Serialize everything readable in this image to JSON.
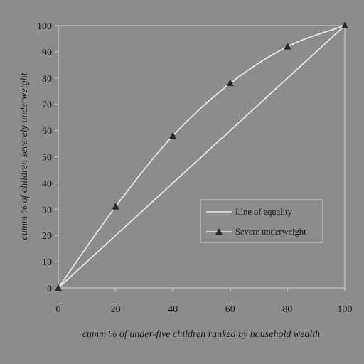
{
  "chart_data": {
    "type": "line",
    "title": "",
    "xlabel": "cumm % of under-five children ranked by household wealth",
    "ylabel": "cumm % of children severely underweight",
    "xlim": [
      0,
      100
    ],
    "ylim": [
      0,
      100
    ],
    "x_ticks": [
      0,
      20,
      40,
      60,
      80,
      100
    ],
    "y_ticks": [
      0,
      10,
      20,
      30,
      40,
      50,
      60,
      70,
      80,
      90,
      100
    ],
    "grid": false,
    "legend_position": "bottom-right",
    "series": [
      {
        "name": "Line of equality",
        "marker": "none",
        "color": "#e6e6e6",
        "x": [
          0,
          100
        ],
        "y": [
          0,
          100
        ]
      },
      {
        "name": "Severe underweight",
        "marker": "triangle",
        "color": "#e6e6e6",
        "x": [
          0,
          20,
          40,
          60,
          80,
          100
        ],
        "y": [
          0,
          31,
          58,
          78,
          92,
          100
        ]
      }
    ]
  },
  "colors": {
    "background": "#8c8c8c",
    "plot_border": "#d0d0d0",
    "series_line": "#e6e6e6",
    "marker": "#2a2a2a",
    "text": "#1a1a1a"
  }
}
